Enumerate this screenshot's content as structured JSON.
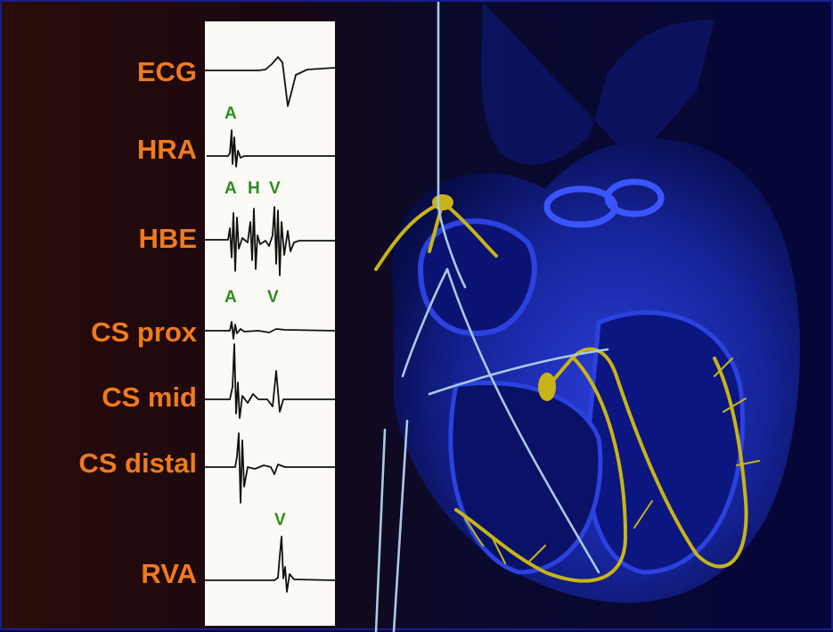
{
  "leads": [
    {
      "id": "ecg",
      "label": "ECG"
    },
    {
      "id": "hra",
      "label": "HRA"
    },
    {
      "id": "hbe",
      "label": "HBE"
    },
    {
      "id": "cs-prox",
      "label": "CS prox"
    },
    {
      "id": "cs-mid",
      "label": "CS mid"
    },
    {
      "id": "cs-distal",
      "label": "CS distal"
    },
    {
      "id": "rva",
      "label": "RVA"
    }
  ],
  "markers": {
    "hra_a": "A",
    "hbe_a": "A",
    "hbe_h": "H",
    "hbe_v": "V",
    "cs_a": "A",
    "cs_v": "V",
    "rva_v": "V"
  },
  "colors": {
    "label": "#f07a1e",
    "marker": "#2e8b1f",
    "trace": "#111111",
    "heart": "#1d2fb8",
    "conduction": "#c8b417",
    "catheter": "#a9c9e6"
  }
}
